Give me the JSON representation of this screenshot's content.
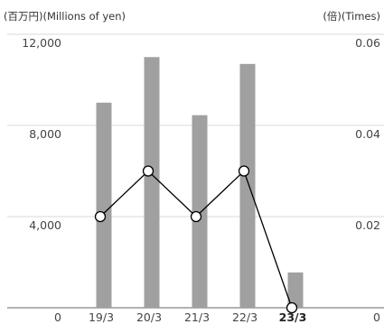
{
  "chart_data": {
    "type": "bar",
    "unit_left": "(百万円)(Millions of yen)",
    "unit_right": "(倍)(Times)",
    "categories": [
      "19/3",
      "20/3",
      "21/3",
      "22/3",
      "23/3"
    ],
    "highlight_category": "23/3",
    "y_left": {
      "ticks": [
        "0",
        "4,000",
        "8,000",
        "12,000"
      ],
      "range": [
        0,
        12000
      ]
    },
    "y_right": {
      "ticks": [
        "0",
        "0.02",
        "0.04",
        "0.06"
      ],
      "range": [
        0,
        0.06
      ]
    },
    "series": [
      {
        "type": "bar",
        "axis": "left",
        "values": [
          9000,
          11000,
          8450,
          10700,
          1550
        ]
      },
      {
        "type": "line",
        "axis": "right",
        "values": [
          0.02,
          0.03,
          0.02,
          0.03,
          0.0
        ]
      }
    ],
    "grid": true,
    "colors": {
      "bar": "#a0a0a0",
      "line": "#000000",
      "grid": "#d9d9d9",
      "axis": "#666666"
    }
  }
}
